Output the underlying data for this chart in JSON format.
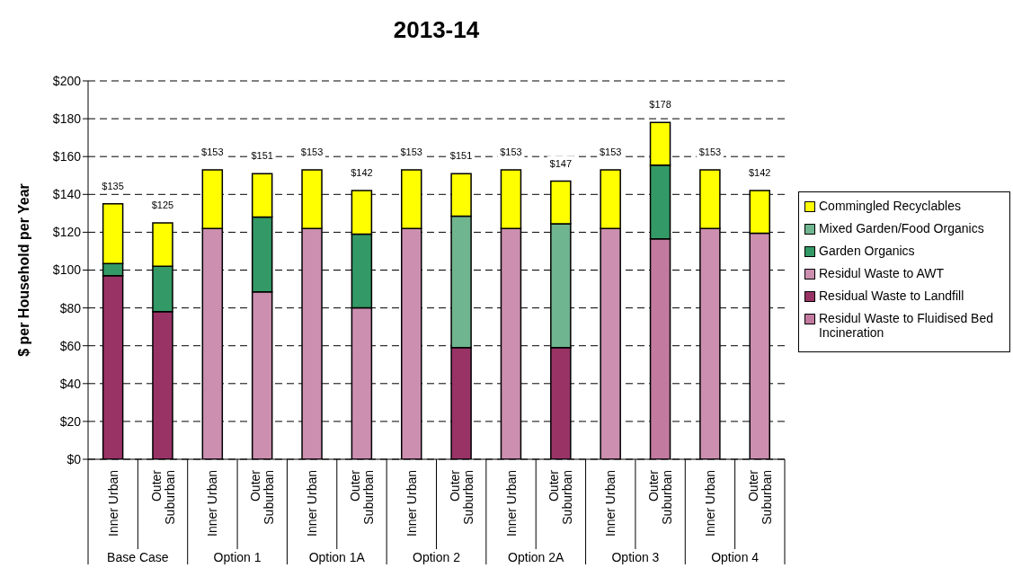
{
  "chart_data": {
    "type": "bar",
    "title": "2013-14",
    "ylabel": "$ per Household per Year",
    "stacked": true,
    "grid": "y",
    "legend": "right",
    "categories": [
      "Inner Urban",
      "Outer Suburban",
      "Inner Urban",
      "Outer Suburban",
      "Inner Urban",
      "Outer Suburban",
      "Inner Urban",
      "Outer Suburban",
      "Inner Urban",
      "Outer Suburban",
      "Inner Urban",
      "Outer Suburban",
      "Inner Urban",
      "Outer Suburban"
    ],
    "annotations": [
      "Base Case",
      "Option 1",
      "Option 1A",
      "Option 2",
      "Option 2A",
      "Option 3",
      "Option 4"
    ],
    "series": [
      {
        "name": "Residul Waste to Fluidised Bed Incineration",
        "color": "#c27a9f",
        "values": [
          null,
          null,
          null,
          null,
          null,
          null,
          null,
          null,
          null,
          null,
          null,
          116.5,
          null,
          null
        ]
      },
      {
        "name": "Residual Waste to Landfill",
        "color": "#993366",
        "values": [
          97,
          78,
          null,
          null,
          null,
          null,
          null,
          59,
          null,
          59,
          null,
          null,
          null,
          null
        ]
      },
      {
        "name": "Residul Waste to AWT",
        "color": "#cc8fb0",
        "values": [
          null,
          null,
          122,
          88.5,
          122,
          80,
          122,
          null,
          122,
          null,
          122,
          null,
          122,
          119.5
        ]
      },
      {
        "name": "Garden Organics",
        "color": "#339966",
        "values": [
          6.5,
          24,
          null,
          39.5,
          null,
          39,
          null,
          null,
          null,
          null,
          null,
          39,
          null,
          null
        ]
      },
      {
        "name": "Mixed Garden/Food Organics",
        "color": "#6fb58f",
        "values": [
          null,
          null,
          null,
          null,
          null,
          null,
          null,
          69.5,
          null,
          65.5,
          null,
          null,
          null,
          null
        ]
      },
      {
        "name": "Commingled Recyclables",
        "color": "#ffff00",
        "values": [
          31.5,
          23,
          31,
          23,
          31,
          23,
          31,
          22.5,
          31,
          22.5,
          31,
          22.5,
          31,
          22.5
        ]
      }
    ],
    "totals": [
      "$135",
      "$125",
      "$153",
      "$151",
      "$153",
      "$142",
      "$153",
      "$151",
      "$153",
      "$147",
      "$153",
      "$178",
      "$153",
      "$142"
    ],
    "ylim": [
      0,
      200
    ],
    "yticks": [
      {
        "value": 0,
        "label": "$0"
      },
      {
        "value": 20,
        "label": "$20"
      },
      {
        "value": 40,
        "label": "$40"
      },
      {
        "value": 60,
        "label": "$60"
      },
      {
        "value": 80,
        "label": "$80"
      },
      {
        "value": 100,
        "label": "$100"
      },
      {
        "value": 120,
        "label": "$120"
      },
      {
        "value": 140,
        "label": "$140"
      },
      {
        "value": 160,
        "label": "$160"
      },
      {
        "value": 180,
        "label": "$180"
      },
      {
        "value": 200,
        "label": "$200"
      }
    ]
  }
}
